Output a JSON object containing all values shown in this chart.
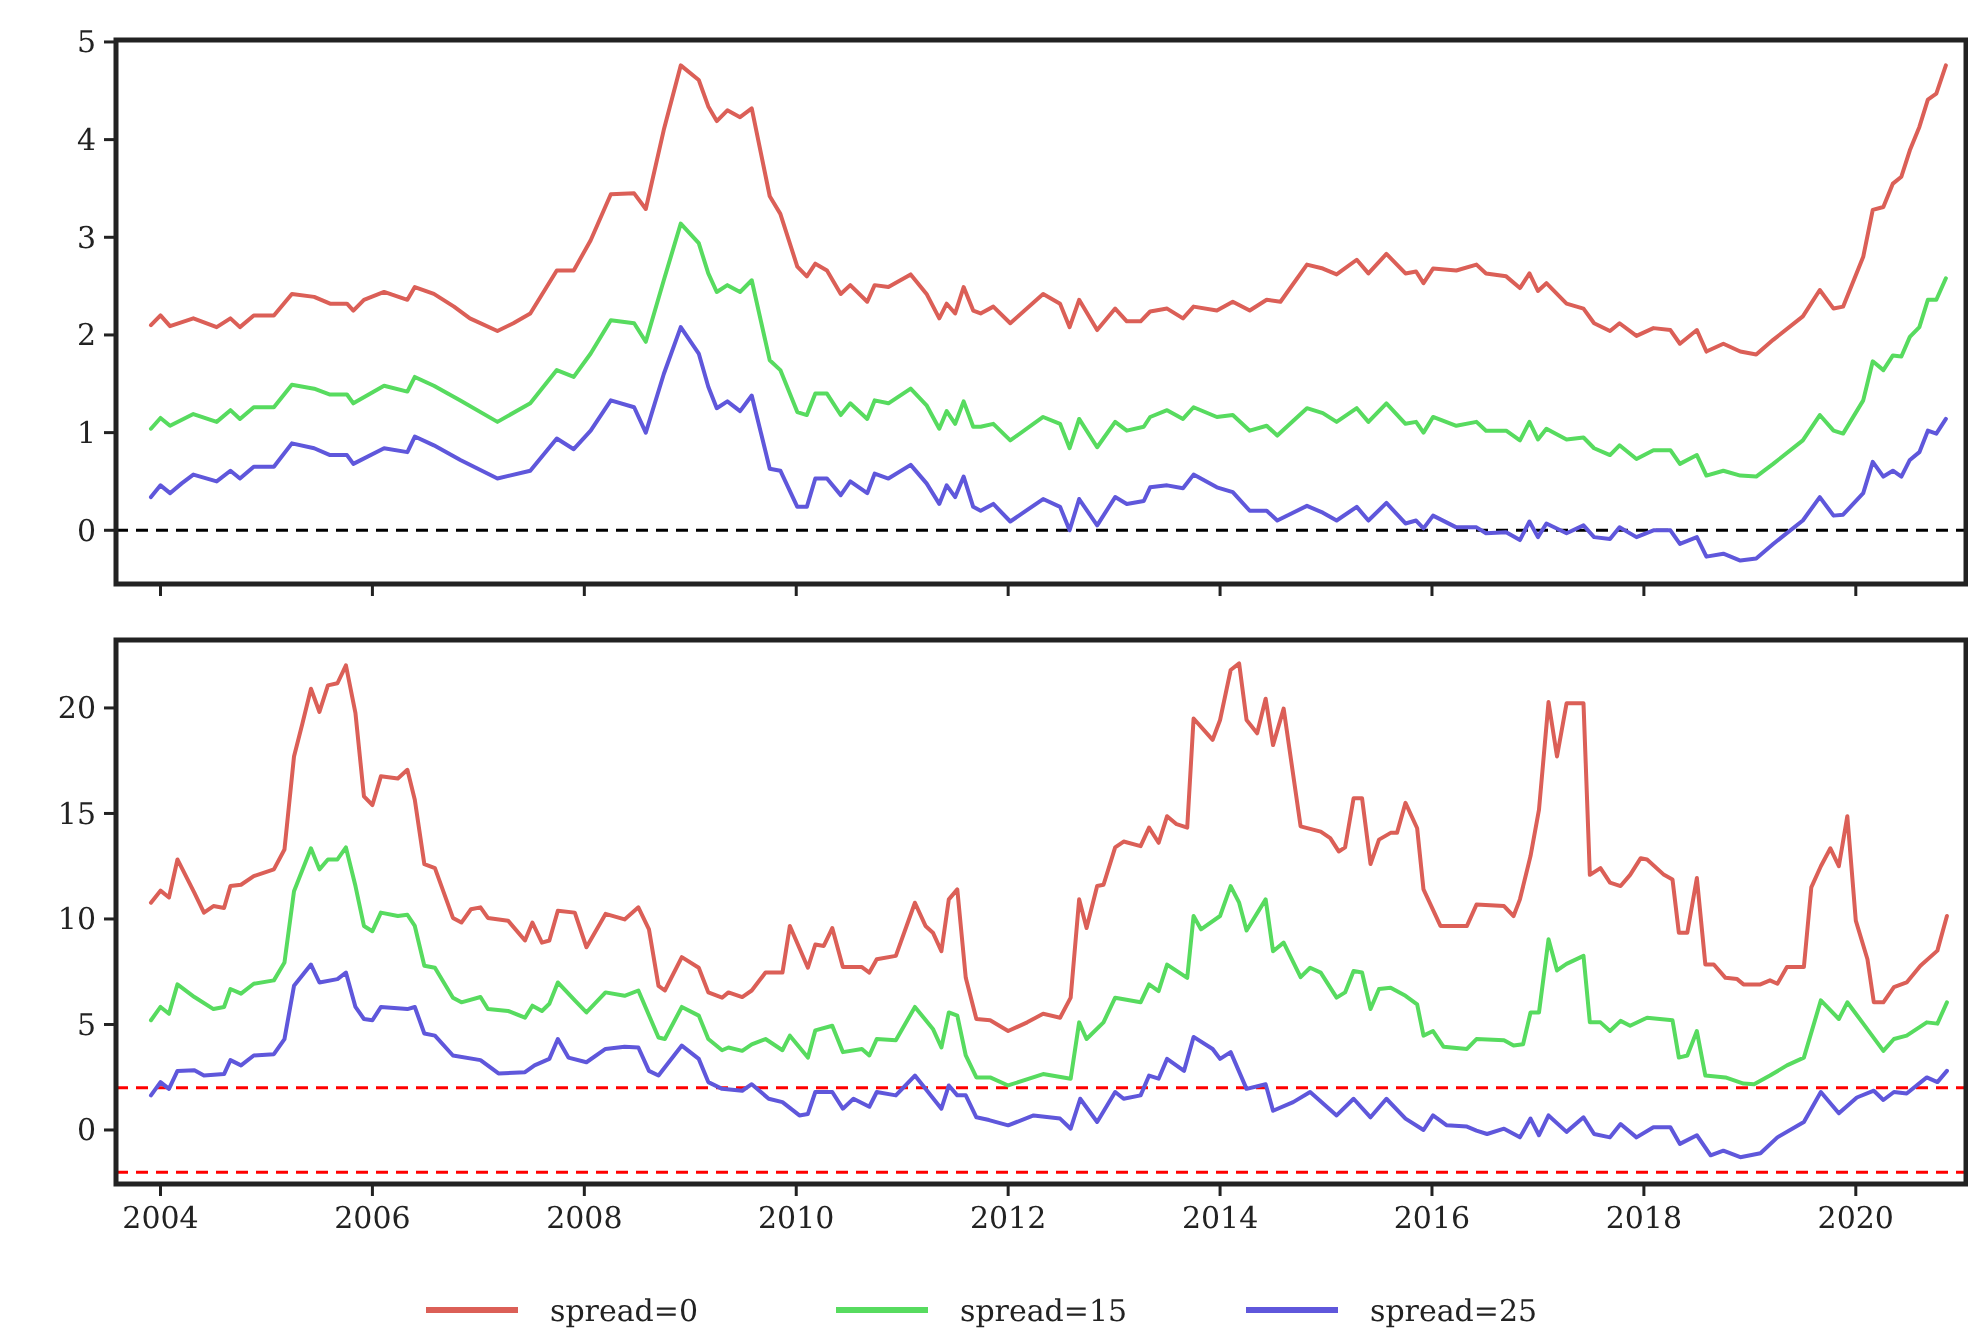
{
  "chart_data": [
    {
      "type": "line",
      "xlim": [
        2003.58,
        2021.04
      ],
      "xticks": [
        2004,
        2006,
        2008,
        2010,
        2012,
        2014,
        2016,
        2018,
        2020
      ],
      "ylim": [
        -0.55,
        5.02
      ],
      "yticks": [
        0,
        1,
        2,
        3,
        4,
        5
      ],
      "tick_labels": "y",
      "grid": false,
      "line_style": "solid",
      "marker": "none",
      "ref_lines": [
        {
          "axis": "y",
          "value": 0,
          "color": "#000000",
          "line_style": "dashed"
        }
      ],
      "series": [
        {
          "color": "#db5f57",
          "x": [
            2003.91,
            2004.0,
            2004.09,
            2004.31,
            2004.53,
            2004.66,
            2004.75,
            2004.88,
            2005.07,
            2005.24,
            2005.45,
            2005.6,
            2005.76,
            2005.82,
            2005.92,
            2006.11,
            2006.33,
            2006.4,
            2006.58,
            2006.77,
            2006.92,
            2007.18,
            2007.33,
            2007.49,
            2007.74,
            2007.9,
            2008.06,
            2008.25,
            2008.47,
            2008.58,
            2008.75,
            2008.91,
            2009.08,
            2009.17,
            2009.25,
            2009.35,
            2009.47,
            2009.58,
            2009.75,
            2009.85,
            2010.01,
            2010.1,
            2010.18,
            2010.29,
            2010.42,
            2010.51,
            2010.67,
            2010.74,
            2010.87,
            2011.08,
            2011.23,
            2011.35,
            2011.42,
            2011.5,
            2011.58,
            2011.67,
            2011.74,
            2011.86,
            2012.02,
            2012.33,
            2012.49,
            2012.58,
            2012.67,
            2012.84,
            2013.01,
            2013.12,
            2013.25,
            2013.34,
            2013.5,
            2013.65,
            2013.75,
            2013.97,
            2014.12,
            2014.28,
            2014.44,
            2014.57,
            2014.82,
            2014.97,
            2015.1,
            2015.29,
            2015.4,
            2015.57,
            2015.75,
            2015.85,
            2015.92,
            2016.01,
            2016.23,
            2016.42,
            2016.51,
            2016.7,
            2016.83,
            2016.92,
            2017.0,
            2017.08,
            2017.27,
            2017.43,
            2017.53,
            2017.68,
            2017.77,
            2017.93,
            2018.09,
            2018.25,
            2018.34,
            2018.5,
            2018.59,
            2018.75,
            2018.91,
            2019.06,
            2019.22,
            2019.5,
            2019.66,
            2019.79,
            2019.88,
            2020.07,
            2020.16,
            2020.26,
            2020.35,
            2020.43,
            2020.51,
            2020.6,
            2020.68,
            2020.76,
            2020.85
          ],
          "values": [
            2.1,
            2.2,
            2.09,
            2.17,
            2.08,
            2.17,
            2.08,
            2.2,
            2.2,
            2.42,
            2.39,
            2.32,
            2.32,
            2.25,
            2.36,
            2.44,
            2.36,
            2.49,
            2.42,
            2.29,
            2.17,
            2.04,
            2.12,
            2.22,
            2.66,
            2.66,
            2.97,
            3.44,
            3.45,
            3.29,
            4.1,
            4.76,
            4.61,
            4.34,
            4.19,
            4.3,
            4.23,
            4.32,
            3.42,
            3.24,
            2.7,
            2.6,
            2.73,
            2.66,
            2.42,
            2.51,
            2.34,
            2.51,
            2.49,
            2.62,
            2.42,
            2.17,
            2.32,
            2.22,
            2.49,
            2.25,
            2.22,
            2.29,
            2.12,
            2.42,
            2.32,
            2.08,
            2.36,
            2.05,
            2.27,
            2.14,
            2.14,
            2.24,
            2.27,
            2.17,
            2.29,
            2.25,
            2.34,
            2.25,
            2.36,
            2.34,
            2.72,
            2.68,
            2.62,
            2.77,
            2.63,
            2.83,
            2.63,
            2.65,
            2.53,
            2.68,
            2.66,
            2.72,
            2.63,
            2.6,
            2.48,
            2.63,
            2.45,
            2.53,
            2.32,
            2.27,
            2.12,
            2.04,
            2.12,
            1.99,
            2.07,
            2.05,
            1.91,
            2.05,
            1.83,
            1.91,
            1.83,
            1.8,
            1.95,
            2.19,
            2.46,
            2.27,
            2.29,
            2.8,
            3.28,
            3.31,
            3.55,
            3.62,
            3.89,
            4.13,
            4.41,
            4.47,
            4.76
          ]
        },
        {
          "color": "#57db5f",
          "x": [
            2003.91,
            2004.0,
            2004.09,
            2004.31,
            2004.53,
            2004.66,
            2004.75,
            2004.88,
            2005.07,
            2005.24,
            2005.45,
            2005.6,
            2005.76,
            2005.82,
            2006.11,
            2006.33,
            2006.4,
            2006.58,
            2006.83,
            2007.18,
            2007.49,
            2007.74,
            2007.9,
            2008.06,
            2008.25,
            2008.47,
            2008.58,
            2008.75,
            2008.91,
            2009.08,
            2009.17,
            2009.25,
            2009.35,
            2009.47,
            2009.58,
            2009.75,
            2009.85,
            2010.01,
            2010.1,
            2010.18,
            2010.29,
            2010.42,
            2010.51,
            2010.67,
            2010.74,
            2010.87,
            2011.08,
            2011.23,
            2011.35,
            2011.42,
            2011.5,
            2011.58,
            2011.67,
            2011.74,
            2011.86,
            2012.02,
            2012.33,
            2012.49,
            2012.58,
            2012.67,
            2012.84,
            2013.01,
            2013.12,
            2013.28,
            2013.34,
            2013.5,
            2013.65,
            2013.75,
            2013.97,
            2014.12,
            2014.28,
            2014.44,
            2014.54,
            2014.82,
            2014.97,
            2015.1,
            2015.29,
            2015.4,
            2015.57,
            2015.75,
            2015.85,
            2015.92,
            2016.01,
            2016.23,
            2016.42,
            2016.51,
            2016.7,
            2016.83,
            2016.92,
            2017.0,
            2017.08,
            2017.27,
            2017.43,
            2017.53,
            2017.68,
            2017.77,
            2017.93,
            2018.09,
            2018.25,
            2018.34,
            2018.5,
            2018.59,
            2018.75,
            2018.91,
            2019.06,
            2019.22,
            2019.5,
            2019.66,
            2019.79,
            2019.88,
            2020.07,
            2020.16,
            2020.26,
            2020.35,
            2020.43,
            2020.51,
            2020.6,
            2020.68,
            2020.76,
            2020.85
          ],
          "values": [
            1.04,
            1.15,
            1.07,
            1.19,
            1.11,
            1.23,
            1.14,
            1.26,
            1.26,
            1.49,
            1.45,
            1.39,
            1.39,
            1.3,
            1.48,
            1.42,
            1.57,
            1.48,
            1.33,
            1.11,
            1.3,
            1.64,
            1.57,
            1.81,
            2.15,
            2.12,
            1.93,
            2.56,
            3.14,
            2.94,
            2.63,
            2.44,
            2.51,
            2.44,
            2.56,
            1.74,
            1.64,
            1.21,
            1.18,
            1.4,
            1.4,
            1.18,
            1.3,
            1.14,
            1.33,
            1.3,
            1.45,
            1.28,
            1.04,
            1.22,
            1.09,
            1.32,
            1.06,
            1.06,
            1.09,
            0.92,
            1.16,
            1.09,
            0.84,
            1.14,
            0.85,
            1.11,
            1.02,
            1.06,
            1.16,
            1.23,
            1.14,
            1.26,
            1.16,
            1.18,
            1.02,
            1.07,
            0.97,
            1.25,
            1.2,
            1.11,
            1.25,
            1.11,
            1.3,
            1.09,
            1.11,
            1.0,
            1.16,
            1.07,
            1.11,
            1.02,
            1.02,
            0.92,
            1.11,
            0.93,
            1.04,
            0.93,
            0.95,
            0.84,
            0.77,
            0.87,
            0.73,
            0.82,
            0.82,
            0.68,
            0.77,
            0.56,
            0.61,
            0.56,
            0.55,
            0.68,
            0.92,
            1.18,
            1.02,
            0.99,
            1.33,
            1.73,
            1.64,
            1.79,
            1.78,
            1.98,
            2.08,
            2.36,
            2.36,
            2.58
          ]
        },
        {
          "color": "#5f57db",
          "x": [
            2003.91,
            2004.0,
            2004.09,
            2004.2,
            2004.31,
            2004.53,
            2004.66,
            2004.75,
            2004.88,
            2005.07,
            2005.24,
            2005.45,
            2005.6,
            2005.76,
            2005.82,
            2006.11,
            2006.33,
            2006.4,
            2006.58,
            2006.83,
            2007.18,
            2007.49,
            2007.74,
            2007.9,
            2008.06,
            2008.25,
            2008.47,
            2008.58,
            2008.75,
            2008.91,
            2009.08,
            2009.17,
            2009.25,
            2009.35,
            2009.47,
            2009.58,
            2009.75,
            2009.85,
            2010.01,
            2010.1,
            2010.18,
            2010.29,
            2010.42,
            2010.51,
            2010.67,
            2010.74,
            2010.87,
            2011.08,
            2011.23,
            2011.35,
            2011.42,
            2011.5,
            2011.58,
            2011.67,
            2011.74,
            2011.86,
            2012.02,
            2012.33,
            2012.49,
            2012.58,
            2012.67,
            2012.84,
            2013.01,
            2013.12,
            2013.28,
            2013.34,
            2013.5,
            2013.65,
            2013.75,
            2013.97,
            2014.12,
            2014.28,
            2014.44,
            2014.54,
            2014.82,
            2014.97,
            2015.1,
            2015.29,
            2015.4,
            2015.57,
            2015.75,
            2015.85,
            2015.92,
            2016.01,
            2016.23,
            2016.42,
            2016.51,
            2016.7,
            2016.83,
            2016.92,
            2017.0,
            2017.08,
            2017.27,
            2017.43,
            2017.53,
            2017.68,
            2017.77,
            2017.93,
            2018.09,
            2018.25,
            2018.34,
            2018.5,
            2018.59,
            2018.75,
            2018.91,
            2019.06,
            2019.22,
            2019.5,
            2019.66,
            2019.79,
            2019.88,
            2020.07,
            2020.16,
            2020.26,
            2020.35,
            2020.43,
            2020.51,
            2020.6,
            2020.68,
            2020.76,
            2020.85
          ],
          "values": [
            0.34,
            0.46,
            0.38,
            0.48,
            0.57,
            0.5,
            0.61,
            0.53,
            0.65,
            0.65,
            0.89,
            0.84,
            0.77,
            0.77,
            0.68,
            0.84,
            0.8,
            0.96,
            0.87,
            0.72,
            0.53,
            0.61,
            0.94,
            0.83,
            1.02,
            1.33,
            1.26,
            1.0,
            1.6,
            2.08,
            1.81,
            1.47,
            1.25,
            1.32,
            1.22,
            1.38,
            0.63,
            0.61,
            0.24,
            0.24,
            0.53,
            0.53,
            0.36,
            0.5,
            0.38,
            0.58,
            0.53,
            0.67,
            0.48,
            0.27,
            0.46,
            0.34,
            0.55,
            0.24,
            0.2,
            0.27,
            0.09,
            0.32,
            0.24,
            0.0,
            0.32,
            0.05,
            0.34,
            0.27,
            0.3,
            0.44,
            0.46,
            0.43,
            0.57,
            0.44,
            0.39,
            0.2,
            0.2,
            0.1,
            0.25,
            0.18,
            0.1,
            0.24,
            0.1,
            0.28,
            0.07,
            0.1,
            0.02,
            0.15,
            0.03,
            0.03,
            -0.03,
            -0.02,
            -0.1,
            0.09,
            -0.07,
            0.07,
            -0.03,
            0.05,
            -0.07,
            -0.09,
            0.03,
            -0.07,
            0.0,
            0.0,
            -0.14,
            -0.07,
            -0.27,
            -0.24,
            -0.31,
            -0.29,
            -0.14,
            0.1,
            0.34,
            0.15,
            0.16,
            0.38,
            0.7,
            0.55,
            0.61,
            0.55,
            0.72,
            0.8,
            1.02,
            0.99,
            1.14
          ]
        }
      ]
    },
    {
      "type": "line",
      "xlim": [
        2003.58,
        2021.04
      ],
      "xticks": [
        2004,
        2006,
        2008,
        2010,
        2012,
        2014,
        2016,
        2018,
        2020
      ],
      "ylim": [
        -2.56,
        23.22
      ],
      "yticks": [
        0,
        5,
        10,
        15,
        20
      ],
      "grid": false,
      "line_style": "solid",
      "marker": "none",
      "legend": "bottom",
      "ref_lines": [
        {
          "axis": "y",
          "value": 2,
          "color": "#ff0000",
          "line_style": "dashed"
        },
        {
          "axis": "y",
          "value": -2,
          "color": "#ff0000",
          "line_style": "dashed"
        }
      ],
      "series": [
        {
          "name": "spread=0",
          "color": "#db5f57",
          "x": [
            2003.91,
            2004.0,
            2004.08,
            2004.16,
            2004.32,
            2004.41,
            2004.5,
            2004.6,
            2004.66,
            2004.76,
            2004.88,
            2005.07,
            2005.17,
            2005.26,
            2005.34,
            2005.42,
            2005.5,
            2005.58,
            2005.67,
            2005.75,
            2005.84,
            2005.92,
            2006.0,
            2006.08,
            2006.24,
            2006.33,
            2006.4,
            2006.49,
            2006.59,
            2006.76,
            2006.84,
            2006.93,
            2007.02,
            2007.09,
            2007.28,
            2007.44,
            2007.51,
            2007.6,
            2007.67,
            2007.75,
            2007.91,
            2008.02,
            2008.2,
            2008.38,
            2008.51,
            2008.61,
            2008.7,
            2008.76,
            2008.92,
            2009.08,
            2009.17,
            2009.3,
            2009.36,
            2009.49,
            2009.58,
            2009.71,
            2009.87,
            2009.94,
            2010.11,
            2010.18,
            2010.26,
            2010.34,
            2010.44,
            2010.62,
            2010.69,
            2010.76,
            2010.94,
            2011.12,
            2011.22,
            2011.29,
            2011.37,
            2011.44,
            2011.52,
            2011.6,
            2011.7,
            2011.83,
            2012.0,
            2012.18,
            2012.33,
            2012.49,
            2012.59,
            2012.67,
            2012.74,
            2012.84,
            2012.9,
            2013.01,
            2013.09,
            2013.25,
            2013.33,
            2013.42,
            2013.5,
            2013.59,
            2013.69,
            2013.75,
            2013.93,
            2014.0,
            2014.1,
            2014.18,
            2014.25,
            2014.35,
            2014.43,
            2014.5,
            2014.6,
            2014.76,
            2014.95,
            2015.04,
            2015.12,
            2015.18,
            2015.26,
            2015.34,
            2015.42,
            2015.5,
            2015.61,
            2015.67,
            2015.75,
            2015.86,
            2015.92,
            2016.08,
            2016.33,
            2016.42,
            2016.68,
            2016.77,
            2016.83,
            2016.93,
            2017.01,
            2017.1,
            2017.18,
            2017.27,
            2017.43,
            2017.49,
            2017.59,
            2017.68,
            2017.78,
            2017.87,
            2017.97,
            2018.03,
            2018.19,
            2018.27,
            2018.33,
            2018.41,
            2018.5,
            2018.58,
            2018.66,
            2018.77,
            2018.88,
            2018.94,
            2019.1,
            2019.19,
            2019.26,
            2019.35,
            2019.51,
            2019.58,
            2019.67,
            2019.76,
            2019.84,
            2019.92,
            2020.0,
            2020.11,
            2020.17,
            2020.26,
            2020.36,
            2020.48,
            2020.61,
            2020.77,
            2020.86
          ],
          "values": [
            10.77,
            11.34,
            11.02,
            12.82,
            11.24,
            10.3,
            10.61,
            10.52,
            11.56,
            11.62,
            12.03,
            12.35,
            13.29,
            17.7,
            19.28,
            20.91,
            19.81,
            21.07,
            21.17,
            22.02,
            19.75,
            15.81,
            15.4,
            16.76,
            16.66,
            17.07,
            15.65,
            12.6,
            12.41,
            10.05,
            9.83,
            10.46,
            10.55,
            10.05,
            9.92,
            8.98,
            9.83,
            8.88,
            8.98,
            10.39,
            10.3,
            8.66,
            10.24,
            9.98,
            10.55,
            9.51,
            6.83,
            6.61,
            8.19,
            7.69,
            6.52,
            6.27,
            6.52,
            6.3,
            6.61,
            7.46,
            7.46,
            9.67,
            7.69,
            8.79,
            8.72,
            9.57,
            7.72,
            7.72,
            7.46,
            8.09,
            8.25,
            10.77,
            9.67,
            9.35,
            8.47,
            10.93,
            11.4,
            7.21,
            5.26,
            5.2,
            4.69,
            5.1,
            5.51,
            5.32,
            6.27,
            10.93,
            9.57,
            11.56,
            11.62,
            13.39,
            13.67,
            13.45,
            14.33,
            13.61,
            14.87,
            14.49,
            14.33,
            19.5,
            18.49,
            19.43,
            21.8,
            22.11,
            19.43,
            18.8,
            20.44,
            18.24,
            19.97,
            14.39,
            14.14,
            13.83,
            13.2,
            13.39,
            15.72,
            15.72,
            12.6,
            13.76,
            14.08,
            14.08,
            15.5,
            14.3,
            11.4,
            9.67,
            9.67,
            10.68,
            10.61,
            10.14,
            10.93,
            12.98,
            15.18,
            20.28,
            17.7,
            20.22,
            20.22,
            12.09,
            12.41,
            11.72,
            11.56,
            12.09,
            12.88,
            12.82,
            12.09,
            11.87,
            9.35,
            9.35,
            11.94,
            7.84,
            7.84,
            7.21,
            7.15,
            6.9,
            6.9,
            7.09,
            6.93,
            7.72,
            7.72,
            11.5,
            12.5,
            13.35,
            12.5,
            14.87,
            9.92,
            8.09,
            6.05,
            6.05,
            6.77,
            6.99,
            7.78,
            8.5,
            10.14
          ]
        },
        {
          "name": "spread=15",
          "color": "#57db5f",
          "x": [
            2003.91,
            2004.0,
            2004.08,
            2004.16,
            2004.32,
            2004.5,
            2004.6,
            2004.66,
            2004.76,
            2004.88,
            2005.07,
            2005.17,
            2005.26,
            2005.42,
            2005.5,
            2005.58,
            2005.67,
            2005.75,
            2005.84,
            2005.92,
            2006.0,
            2006.08,
            2006.24,
            2006.33,
            2006.4,
            2006.49,
            2006.59,
            2006.76,
            2006.84,
            2007.02,
            2007.09,
            2007.28,
            2007.44,
            2007.51,
            2007.6,
            2007.67,
            2007.75,
            2007.91,
            2008.02,
            2008.2,
            2008.38,
            2008.51,
            2008.7,
            2008.76,
            2008.92,
            2009.08,
            2009.17,
            2009.3,
            2009.36,
            2009.49,
            2009.58,
            2009.71,
            2009.87,
            2009.94,
            2010.11,
            2010.18,
            2010.34,
            2010.44,
            2010.62,
            2010.69,
            2010.76,
            2010.94,
            2011.12,
            2011.29,
            2011.37,
            2011.44,
            2011.52,
            2011.6,
            2011.7,
            2011.83,
            2012.0,
            2012.33,
            2012.59,
            2012.67,
            2012.74,
            2012.9,
            2013.01,
            2013.25,
            2013.33,
            2013.42,
            2013.5,
            2013.69,
            2013.75,
            2013.82,
            2014.0,
            2014.1,
            2014.18,
            2014.25,
            2014.43,
            2014.5,
            2014.6,
            2014.76,
            2014.85,
            2014.95,
            2015.1,
            2015.18,
            2015.26,
            2015.34,
            2015.42,
            2015.5,
            2015.61,
            2015.75,
            2015.86,
            2015.92,
            2016.01,
            2016.11,
            2016.33,
            2016.42,
            2016.68,
            2016.77,
            2016.86,
            2016.93,
            2017.01,
            2017.1,
            2017.18,
            2017.27,
            2017.43,
            2017.49,
            2017.59,
            2017.68,
            2017.78,
            2017.87,
            2018.03,
            2018.27,
            2018.33,
            2018.41,
            2018.5,
            2018.58,
            2018.77,
            2018.94,
            2019.04,
            2019.19,
            2019.35,
            2019.51,
            2019.67,
            2019.84,
            2019.92,
            2020.07,
            2020.26,
            2020.36,
            2020.48,
            2020.67,
            2020.77,
            2020.86
          ],
          "values": [
            5.2,
            5.83,
            5.51,
            6.9,
            6.3,
            5.73,
            5.83,
            6.68,
            6.46,
            6.93,
            7.09,
            7.94,
            11.31,
            13.35,
            12.35,
            12.82,
            12.82,
            13.39,
            11.56,
            9.67,
            9.42,
            10.3,
            10.14,
            10.2,
            9.67,
            7.78,
            7.69,
            6.27,
            6.05,
            6.3,
            5.73,
            5.64,
            5.32,
            5.89,
            5.64,
            5.98,
            6.99,
            6.14,
            5.57,
            6.52,
            6.36,
            6.61,
            4.38,
            4.31,
            5.83,
            5.42,
            4.31,
            3.78,
            3.91,
            3.75,
            4.06,
            4.31,
            3.78,
            4.47,
            3.43,
            4.72,
            4.94,
            3.69,
            3.84,
            3.53,
            4.31,
            4.25,
            5.83,
            4.79,
            3.91,
            5.57,
            5.42,
            3.53,
            2.49,
            2.49,
            2.11,
            2.65,
            2.43,
            5.1,
            4.31,
            5.1,
            6.27,
            6.05,
            6.9,
            6.58,
            7.84,
            7.21,
            10.14,
            9.51,
            10.14,
            11.56,
            10.77,
            9.45,
            10.93,
            8.47,
            8.88,
            7.24,
            7.69,
            7.46,
            6.27,
            6.52,
            7.53,
            7.46,
            5.73,
            6.68,
            6.74,
            6.36,
            5.95,
            4.47,
            4.69,
            3.94,
            3.84,
            4.31,
            4.25,
            4.0,
            4.06,
            5.57,
            5.57,
            9.04,
            7.56,
            7.87,
            8.25,
            5.1,
            5.1,
            4.69,
            5.17,
            4.94,
            5.32,
            5.2,
            3.43,
            3.53,
            4.69,
            2.58,
            2.49,
            2.2,
            2.17,
            2.58,
            3.06,
            3.43,
            6.14,
            5.26,
            6.05,
            5.04,
            3.75,
            4.31,
            4.47,
            5.1,
            5.04,
            6.05
          ]
        },
        {
          "name": "spread=25",
          "color": "#5f57db",
          "x": [
            2003.91,
            2004.0,
            2004.08,
            2004.16,
            2004.32,
            2004.41,
            2004.6,
            2004.66,
            2004.76,
            2004.88,
            2005.07,
            2005.17,
            2005.26,
            2005.42,
            2005.5,
            2005.67,
            2005.75,
            2005.84,
            2005.92,
            2006.0,
            2006.08,
            2006.33,
            2006.4,
            2006.49,
            2006.59,
            2006.76,
            2007.02,
            2007.19,
            2007.44,
            2007.53,
            2007.67,
            2007.75,
            2007.85,
            2008.02,
            2008.2,
            2008.38,
            2008.51,
            2008.61,
            2008.7,
            2008.92,
            2009.08,
            2009.17,
            2009.3,
            2009.49,
            2009.58,
            2009.74,
            2009.87,
            2010.03,
            2010.11,
            2010.18,
            2010.34,
            2010.44,
            2010.54,
            2010.69,
            2010.76,
            2010.94,
            2011.12,
            2011.22,
            2011.37,
            2011.44,
            2011.52,
            2011.6,
            2011.7,
            2011.82,
            2012.0,
            2012.24,
            2012.49,
            2012.59,
            2012.68,
            2012.84,
            2013.01,
            2013.09,
            2013.25,
            2013.33,
            2013.42,
            2013.5,
            2013.66,
            2013.75,
            2013.93,
            2014.0,
            2014.1,
            2014.25,
            2014.43,
            2014.5,
            2014.69,
            2014.85,
            2015.1,
            2015.26,
            2015.42,
            2015.57,
            2015.75,
            2015.92,
            2016.01,
            2016.14,
            2016.33,
            2016.42,
            2016.52,
            2016.68,
            2016.83,
            2016.93,
            2017.01,
            2017.1,
            2017.27,
            2017.43,
            2017.53,
            2017.68,
            2017.78,
            2017.93,
            2018.09,
            2018.25,
            2018.34,
            2018.5,
            2018.63,
            2018.75,
            2018.91,
            2019.1,
            2019.26,
            2019.51,
            2019.67,
            2019.84,
            2020.01,
            2020.17,
            2020.26,
            2020.36,
            2020.48,
            2020.67,
            2020.77,
            2020.86
          ],
          "values": [
            1.64,
            2.27,
            1.95,
            2.8,
            2.83,
            2.58,
            2.65,
            3.31,
            3.06,
            3.53,
            3.59,
            4.31,
            6.83,
            7.84,
            6.99,
            7.15,
            7.46,
            5.83,
            5.26,
            5.2,
            5.83,
            5.73,
            5.83,
            4.57,
            4.47,
            3.53,
            3.31,
            2.68,
            2.74,
            3.06,
            3.37,
            4.31,
            3.43,
            3.21,
            3.84,
            3.94,
            3.91,
            2.8,
            2.58,
            4.0,
            3.37,
            2.27,
            1.95,
            1.86,
            2.17,
            1.48,
            1.32,
            0.69,
            0.76,
            1.8,
            1.8,
            1.01,
            1.48,
            1.1,
            1.8,
            1.64,
            2.58,
            1.95,
            1.01,
            2.11,
            1.64,
            1.64,
            0.6,
            0.47,
            0.22,
            0.69,
            0.54,
            0.06,
            1.48,
            0.38,
            1.8,
            1.48,
            1.64,
            2.58,
            2.43,
            3.37,
            2.8,
            4.41,
            3.84,
            3.37,
            3.69,
            1.95,
            2.17,
            0.91,
            1.32,
            1.8,
            0.69,
            1.48,
            0.6,
            1.48,
            0.54,
            0.0,
            0.69,
            0.22,
            0.16,
            -0.03,
            -0.19,
            0.06,
            -0.35,
            0.54,
            -0.25,
            0.69,
            -0.09,
            0.6,
            -0.19,
            -0.35,
            0.28,
            -0.35,
            0.13,
            0.13,
            -0.66,
            -0.25,
            -1.2,
            -0.98,
            -1.29,
            -1.1,
            -0.35,
            0.38,
            1.8,
            0.79,
            1.54,
            1.86,
            1.42,
            1.8,
            1.73,
            2.49,
            2.27,
            2.8
          ]
        }
      ]
    }
  ]
}
